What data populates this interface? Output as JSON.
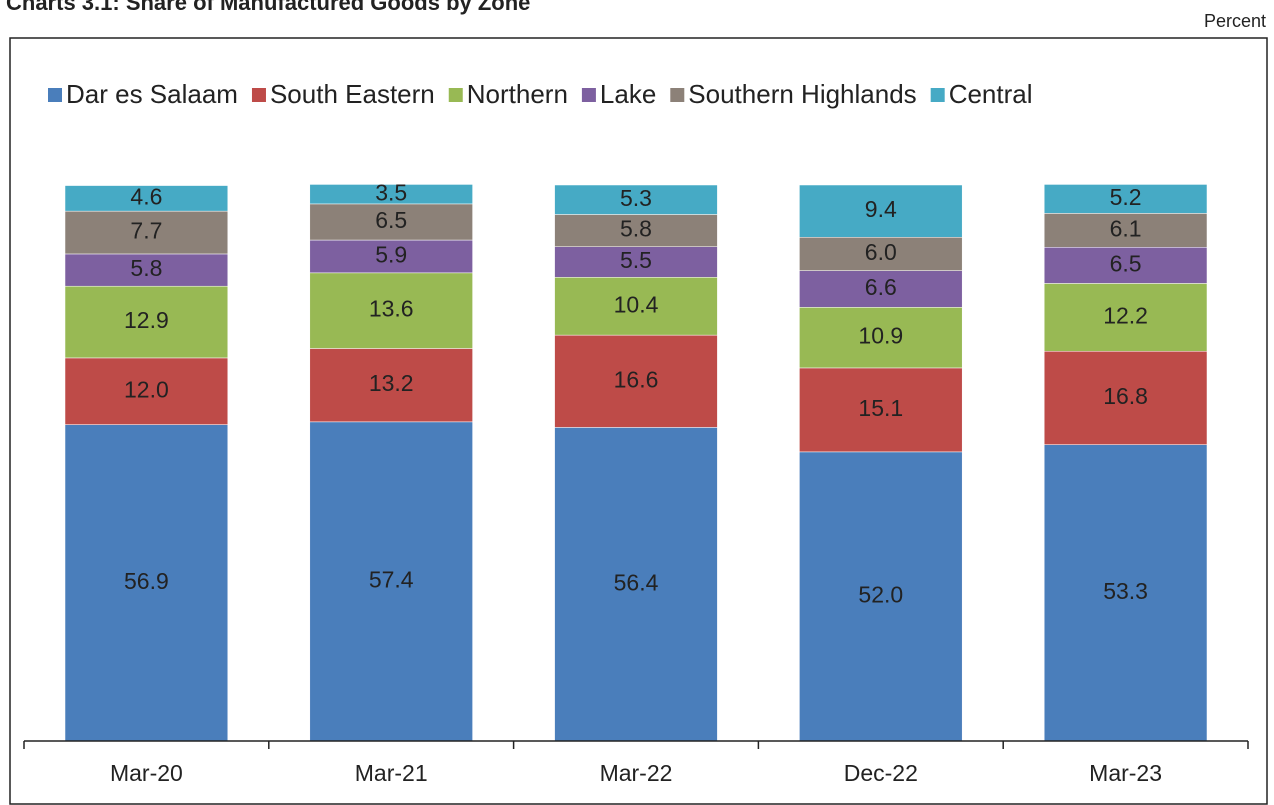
{
  "chart_data": {
    "type": "stacked_bar",
    "title": "Charts 3.1: Share of Manufactured Goods by Zone",
    "unit_label": "Percent",
    "categories": [
      "Mar-20",
      "Mar-21",
      "Mar-22",
      "Dec-22",
      "Mar-23"
    ],
    "ylim": [
      0,
      100
    ],
    "series": [
      {
        "name": "Dar es Salaam",
        "color": "#4a7ebb",
        "values": [
          56.9,
          57.4,
          56.4,
          52.0,
          53.3
        ],
        "value_labels": [
          "56.9",
          "57.4",
          "56.4",
          "52.0",
          "53.3"
        ]
      },
      {
        "name": "South Eastern",
        "color": "#be4b48",
        "values": [
          12.0,
          13.2,
          16.6,
          15.1,
          16.8
        ],
        "value_labels": [
          "12.0",
          "13.2",
          "16.6",
          "15.1",
          "16.8"
        ]
      },
      {
        "name": "Northern",
        "color": "#98b954",
        "values": [
          12.9,
          13.6,
          10.4,
          10.9,
          12.2
        ],
        "value_labels": [
          "12.9",
          "13.6",
          "10.4",
          "10.9",
          "12.2"
        ]
      },
      {
        "name": "Lake",
        "color": "#7d60a0",
        "values": [
          5.8,
          5.9,
          5.5,
          6.6,
          6.5
        ],
        "value_labels": [
          "5.8",
          "5.9",
          "5.5",
          "6.6",
          "6.5"
        ]
      },
      {
        "name": "Southern Highlands",
        "color": "#8c8178",
        "values": [
          7.7,
          6.5,
          5.8,
          6.0,
          6.1
        ],
        "value_labels": [
          "7.7",
          "6.5",
          "5.8",
          "6.0",
          "6.1"
        ]
      },
      {
        "name": "Central",
        "color": "#46aac5",
        "values": [
          4.6,
          3.5,
          5.3,
          9.4,
          5.2
        ],
        "value_labels": [
          "4.6",
          "3.5",
          "5.3",
          "9.4",
          "5.2"
        ]
      }
    ]
  }
}
